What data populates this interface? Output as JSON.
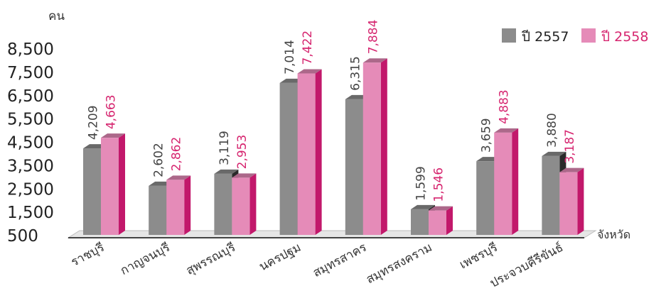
{
  "chart_data": {
    "type": "bar",
    "ylabel": "คน",
    "xlabel": "จังหวัด",
    "ylim": [
      500,
      8500
    ],
    "yticks": [
      8500,
      7500,
      6500,
      5500,
      4500,
      3500,
      2500,
      1500,
      500
    ],
    "ytick_labels": [
      "8,500",
      "7,500",
      "6,500",
      "5,500",
      "4,500",
      "3,500",
      "2,500",
      "1,500",
      "500"
    ],
    "categories": [
      "ราชบุรี",
      "กาญจนบุรี",
      "สุพรรณบุรี",
      "นครปฐม",
      "สมุทรสาคร",
      "สมุทรสงคราม",
      "เพชรบุรี",
      "ประจวบคีรีขันธ์"
    ],
    "series": [
      {
        "name": "ปี 2557",
        "color": "#8c8c8c",
        "label_color": "#444444",
        "values": [
          4209,
          2602,
          3119,
          7014,
          6315,
          1599,
          3659,
          3880
        ],
        "value_labels": [
          "4,209",
          "2,602",
          "3,119",
          "7,014",
          "6,315",
          "1,599",
          "3,659",
          "3,880"
        ]
      },
      {
        "name": "ปี 2558",
        "color": "#e58bb8",
        "label_color": "#d6256f",
        "values": [
          4663,
          2862,
          2953,
          7422,
          7884,
          1546,
          4883,
          3187
        ],
        "value_labels": [
          "4,663",
          "2,862",
          "2,953",
          "7,422",
          "7,884",
          "1,546",
          "4,883",
          "3,187"
        ]
      }
    ],
    "legend_position": "top-right",
    "grid": false
  }
}
